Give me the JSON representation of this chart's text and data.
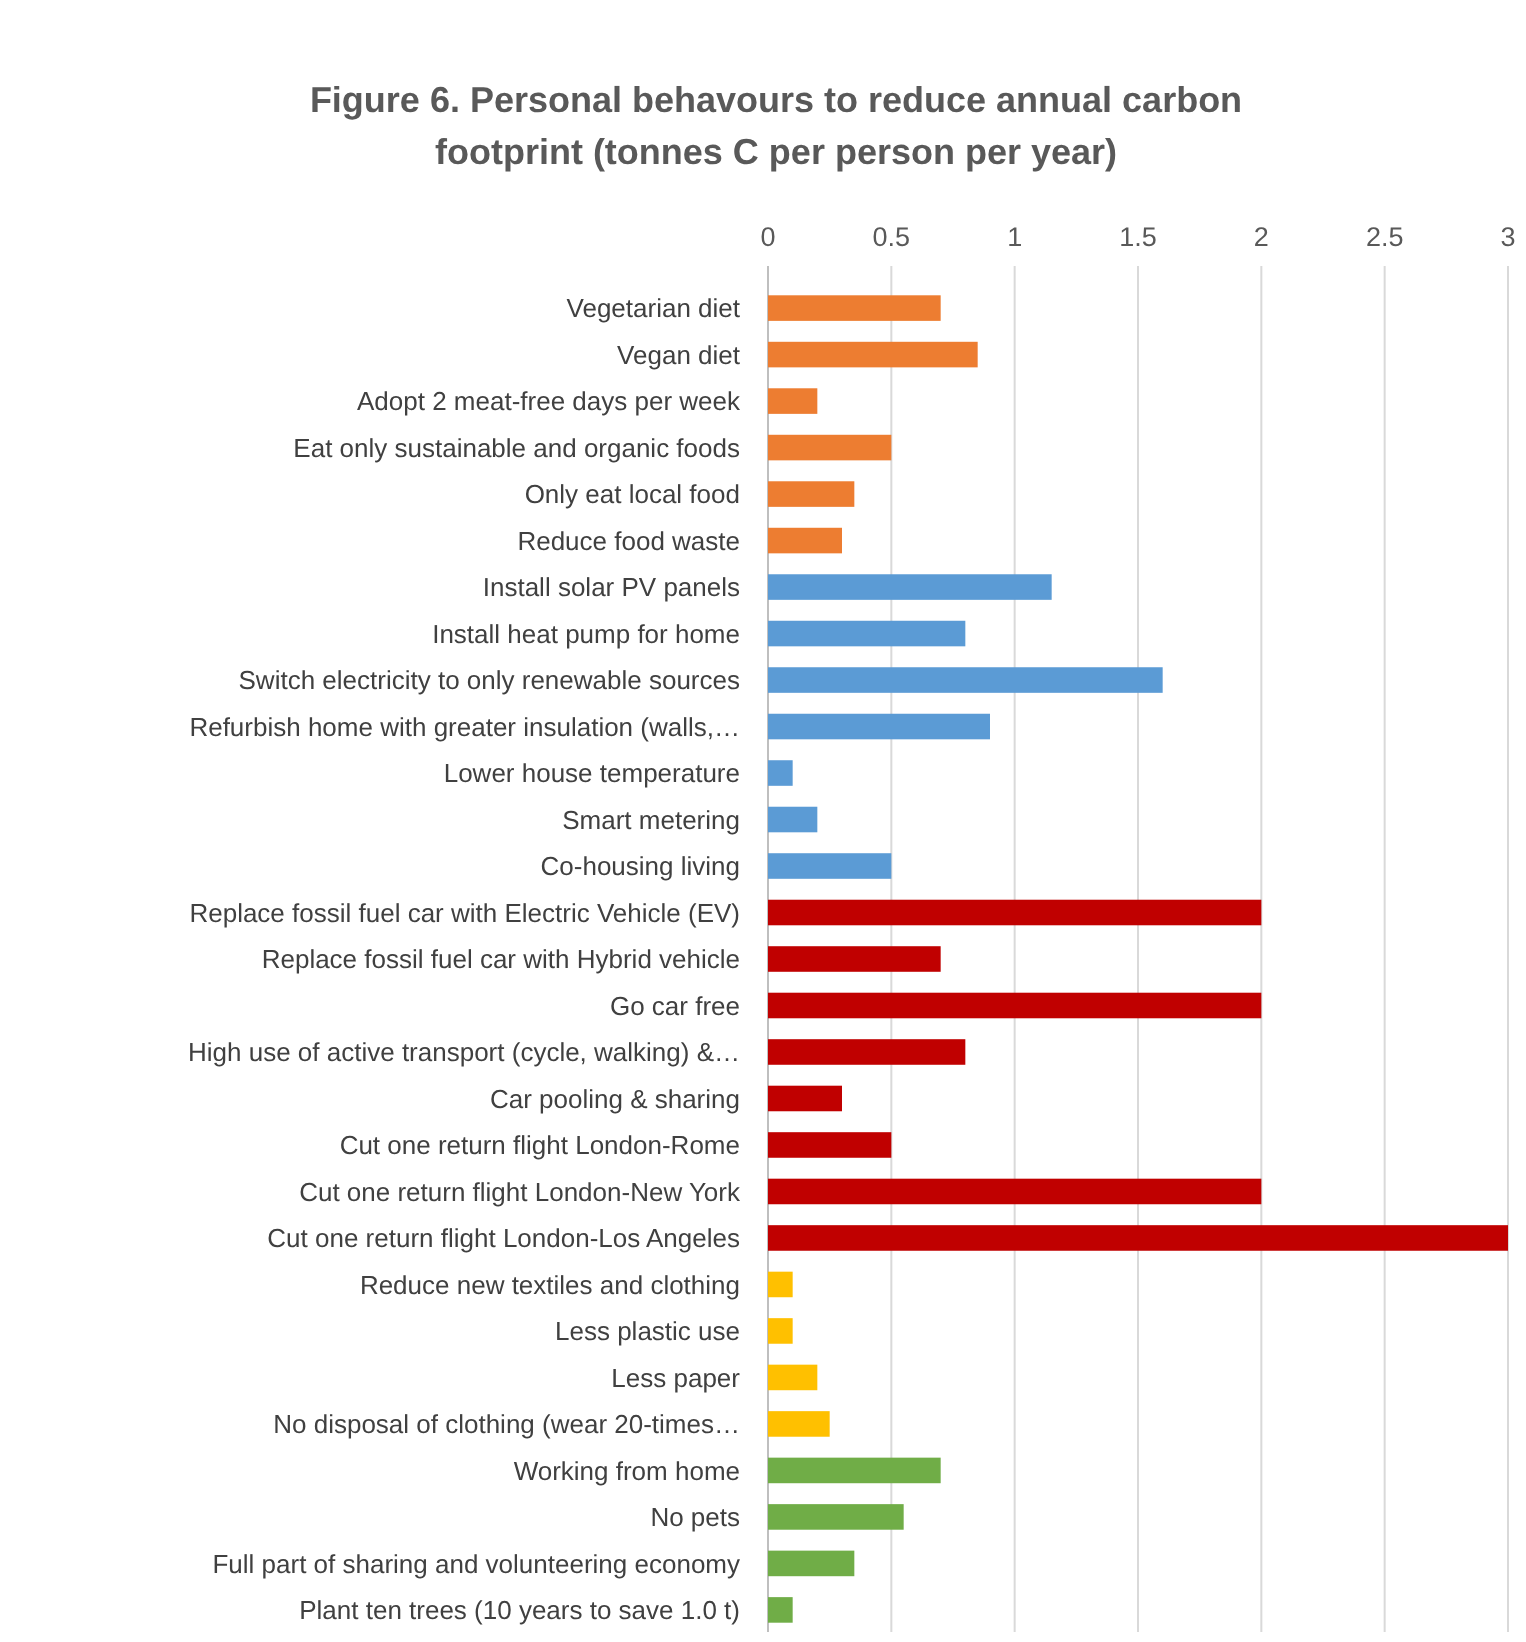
{
  "chart_data": {
    "type": "bar",
    "orientation": "horizontal",
    "title": "Figure 6. Personal behavours to reduce annual carbon footprint (tonnes C per person per year)",
    "categories": [
      "Vegetarian diet",
      "Vegan diet",
      "Adopt 2 meat-free days per week",
      "Eat only sustainable and organic foods",
      "Only eat local food",
      "Reduce food waste",
      "Install solar PV panels",
      "Install heat pump for home",
      "Switch electricity to only renewable sources",
      "Refurbish home with greater insulation (walls,…",
      "Lower house temperature",
      "Smart metering",
      "Co-housing living",
      "Replace fossil fuel car with Electric Vehicle (EV)",
      "Replace fossil fuel car with Hybrid vehicle",
      "Go car free",
      "High use of active transport (cycle, walking) &…",
      "Car pooling & sharing",
      "Cut one return flight London-Rome",
      "Cut one return flight London-New York",
      "Cut one return flight London-Los Angeles",
      "Reduce new textiles and clothing",
      "Less plastic use",
      "Less paper",
      "No disposal of clothing (wear 20-times…",
      "Working from home",
      "No pets",
      "Full part of sharing and volunteering economy",
      "Plant ten trees (10 years to save 1.0 t)"
    ],
    "values": [
      0.7,
      0.85,
      0.2,
      0.5,
      0.35,
      0.3,
      1.15,
      0.8,
      1.6,
      0.9,
      0.1,
      0.2,
      0.5,
      2,
      0.7,
      2,
      0.8,
      0.3,
      0.5,
      2,
      3,
      0.1,
      0.1,
      0.2,
      0.25,
      0.7,
      0.55,
      0.35,
      0.1
    ],
    "colors": [
      "#ed7d31",
      "#ed7d31",
      "#ed7d31",
      "#ed7d31",
      "#ed7d31",
      "#ed7d31",
      "#5b9bd5",
      "#5b9bd5",
      "#5b9bd5",
      "#5b9bd5",
      "#5b9bd5",
      "#5b9bd5",
      "#5b9bd5",
      "#c00000",
      "#c00000",
      "#c00000",
      "#c00000",
      "#c00000",
      "#c00000",
      "#c00000",
      "#c00000",
      "#ffc000",
      "#ffc000",
      "#ffc000",
      "#ffc000",
      "#70ad47",
      "#70ad47",
      "#70ad47",
      "#70ad47"
    ],
    "xlim": [
      0,
      3
    ],
    "xticks": [
      0,
      0.5,
      1,
      1.5,
      2,
      2.5,
      3
    ],
    "grid": "x"
  }
}
